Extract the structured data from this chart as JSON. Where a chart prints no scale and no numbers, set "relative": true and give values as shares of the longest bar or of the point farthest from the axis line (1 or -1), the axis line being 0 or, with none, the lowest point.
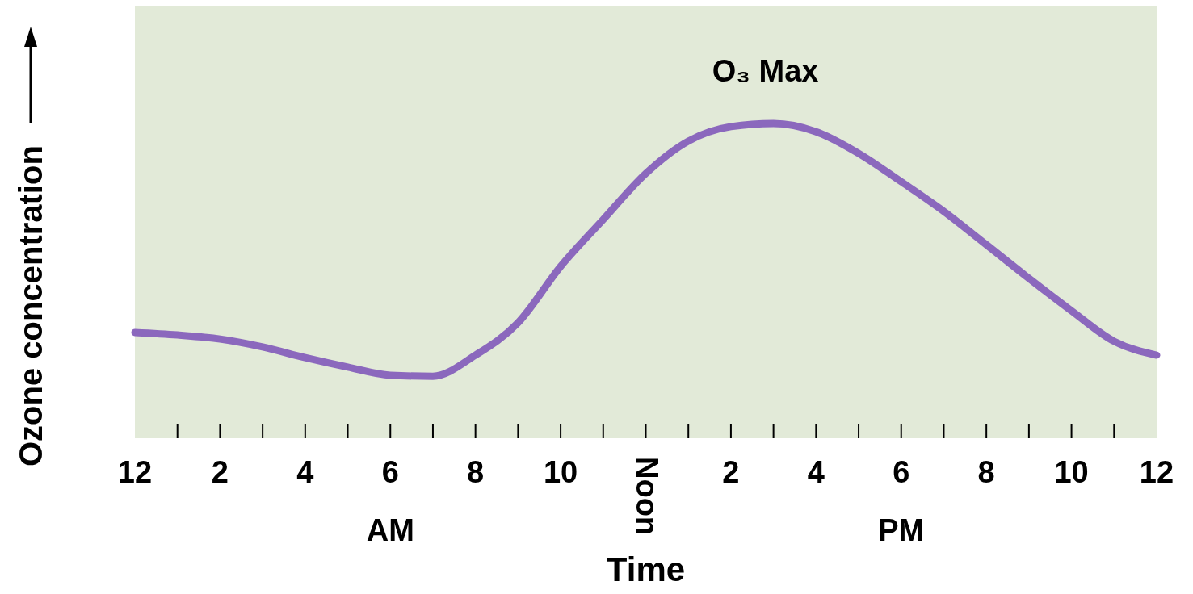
{
  "chart_data": {
    "type": "line",
    "relative": true,
    "xlabel": "Time",
    "ylabel": "Ozone concentration",
    "categories": [
      "12",
      null,
      "2",
      null,
      "4",
      null,
      "6",
      null,
      "8",
      null,
      "10",
      null,
      "Noon",
      null,
      "2",
      null,
      "4",
      null,
      "6",
      null,
      "8",
      null,
      "10",
      null,
      "12"
    ],
    "series": [
      {
        "color": "#8b68bd",
        "values": [
          0.336,
          0.328,
          0.315,
          0.29,
          0.256,
          0.226,
          0.2,
          0.197,
          0.264,
          0.367,
          0.546,
          0.695,
          0.841,
          0.944,
          0.99,
          1,
          0.974,
          0.905,
          0.815,
          0.721,
          0.615,
          0.508,
          0.405,
          0.308,
          0.264
        ]
      }
    ],
    "annotations": [
      "O₃ Max",
      "AM",
      "PM"
    ],
    "grid": false,
    "line_style": "solid",
    "marker": "none"
  }
}
